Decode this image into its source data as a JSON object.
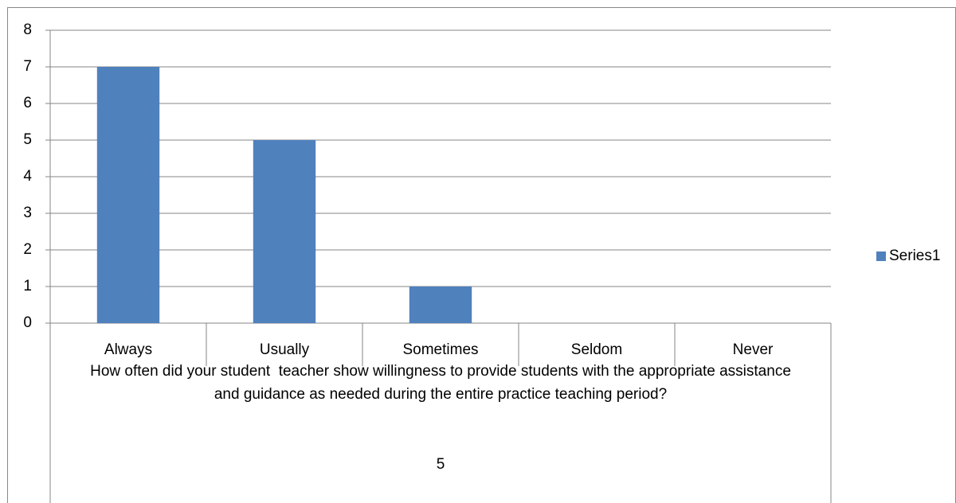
{
  "chart_data": {
    "type": "bar",
    "categories": [
      "Always",
      "Usually",
      "Sometimes",
      "Seldom",
      "Never"
    ],
    "category_group": "How often did your student  teacher show willingness to provide students with the appropriate assistance and guidance as needed during the entire practice teaching period?",
    "category_group_outer": "5",
    "series": [
      {
        "name": "Series1",
        "color": "#4f81bd",
        "values": [
          7,
          5,
          1,
          0,
          0
        ]
      }
    ],
    "ylim": [
      0,
      8
    ],
    "yticks": [
      0,
      1,
      2,
      3,
      4,
      5,
      6,
      7,
      8
    ],
    "grid": true,
    "legend": "right"
  }
}
